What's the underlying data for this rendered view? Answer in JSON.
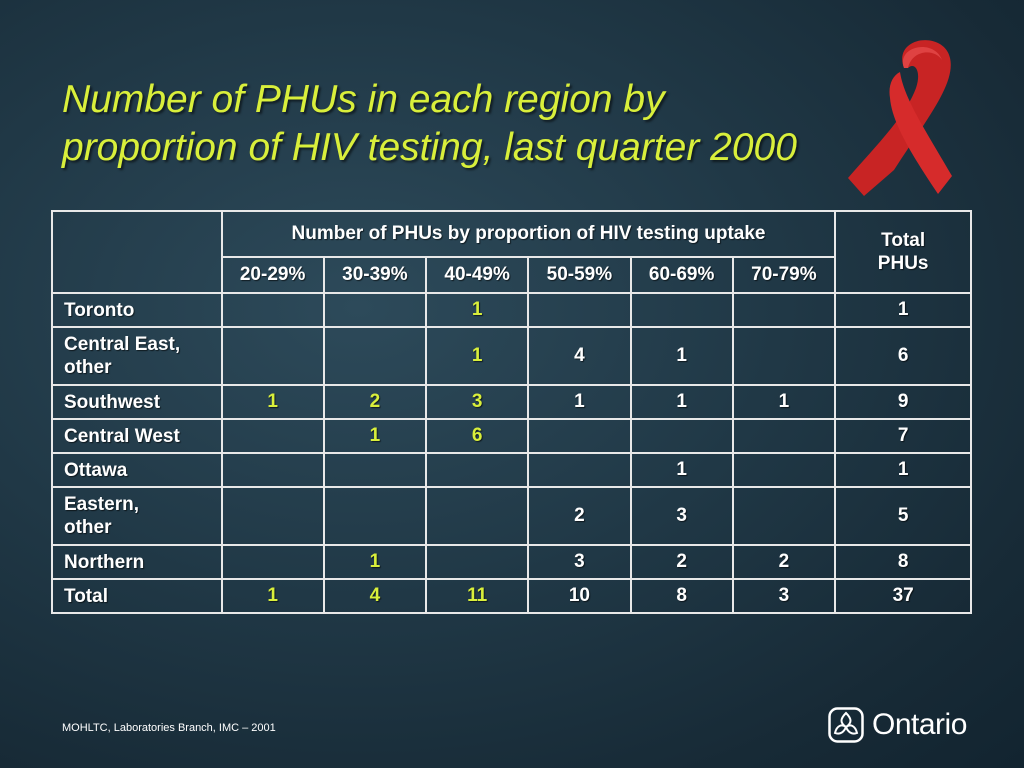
{
  "slide": {
    "title_line1": "Number of PHUs in each region by",
    "title_line2": "proportion of HIV testing, last quarter 2000",
    "footer": "MOHLTC, Laboratories Branch, IMC – 2001",
    "logo_text": "Ontario"
  },
  "colors": {
    "title": "#d9ef3b",
    "background": "#203846",
    "ribbon": "#d62b2b",
    "highlight_values": "#d9ef3b"
  },
  "table": {
    "group_header": "Number of PHUs by proportion of HIV testing uptake",
    "total_header_line1": "Total",
    "total_header_line2": "PHUs",
    "columns": [
      "20-29%",
      "30-39%",
      "40-49%",
      "50-59%",
      "60-69%",
      "70-79%"
    ],
    "rows": [
      {
        "label_lines": [
          "Toronto"
        ],
        "cells": [
          "",
          "",
          "1",
          "",
          "",
          ""
        ],
        "total": "1"
      },
      {
        "label_lines": [
          "Central East,",
          "other"
        ],
        "cells": [
          "",
          "",
          "1",
          "4",
          "1",
          ""
        ],
        "total": "6"
      },
      {
        "label_lines": [
          "Southwest"
        ],
        "cells": [
          "1",
          "2",
          "3",
          "1",
          "1",
          "1"
        ],
        "total": "9"
      },
      {
        "label_lines": [
          "Central West"
        ],
        "cells": [
          "",
          "1",
          "6",
          "",
          "",
          ""
        ],
        "total": "7"
      },
      {
        "label_lines": [
          "Ottawa"
        ],
        "cells": [
          "",
          "",
          "",
          "",
          "1",
          ""
        ],
        "total": "1"
      },
      {
        "label_lines": [
          "Eastern,",
          "other"
        ],
        "cells": [
          "",
          "",
          "",
          "2",
          "3",
          ""
        ],
        "total": "5"
      },
      {
        "label_lines": [
          "Northern"
        ],
        "cells": [
          "",
          "1",
          "",
          "3",
          "2",
          "2"
        ],
        "total": "8"
      },
      {
        "label_lines": [
          "Total"
        ],
        "cells": [
          "1",
          "4",
          "11",
          "10",
          "8",
          "3"
        ],
        "total": "37"
      }
    ]
  }
}
